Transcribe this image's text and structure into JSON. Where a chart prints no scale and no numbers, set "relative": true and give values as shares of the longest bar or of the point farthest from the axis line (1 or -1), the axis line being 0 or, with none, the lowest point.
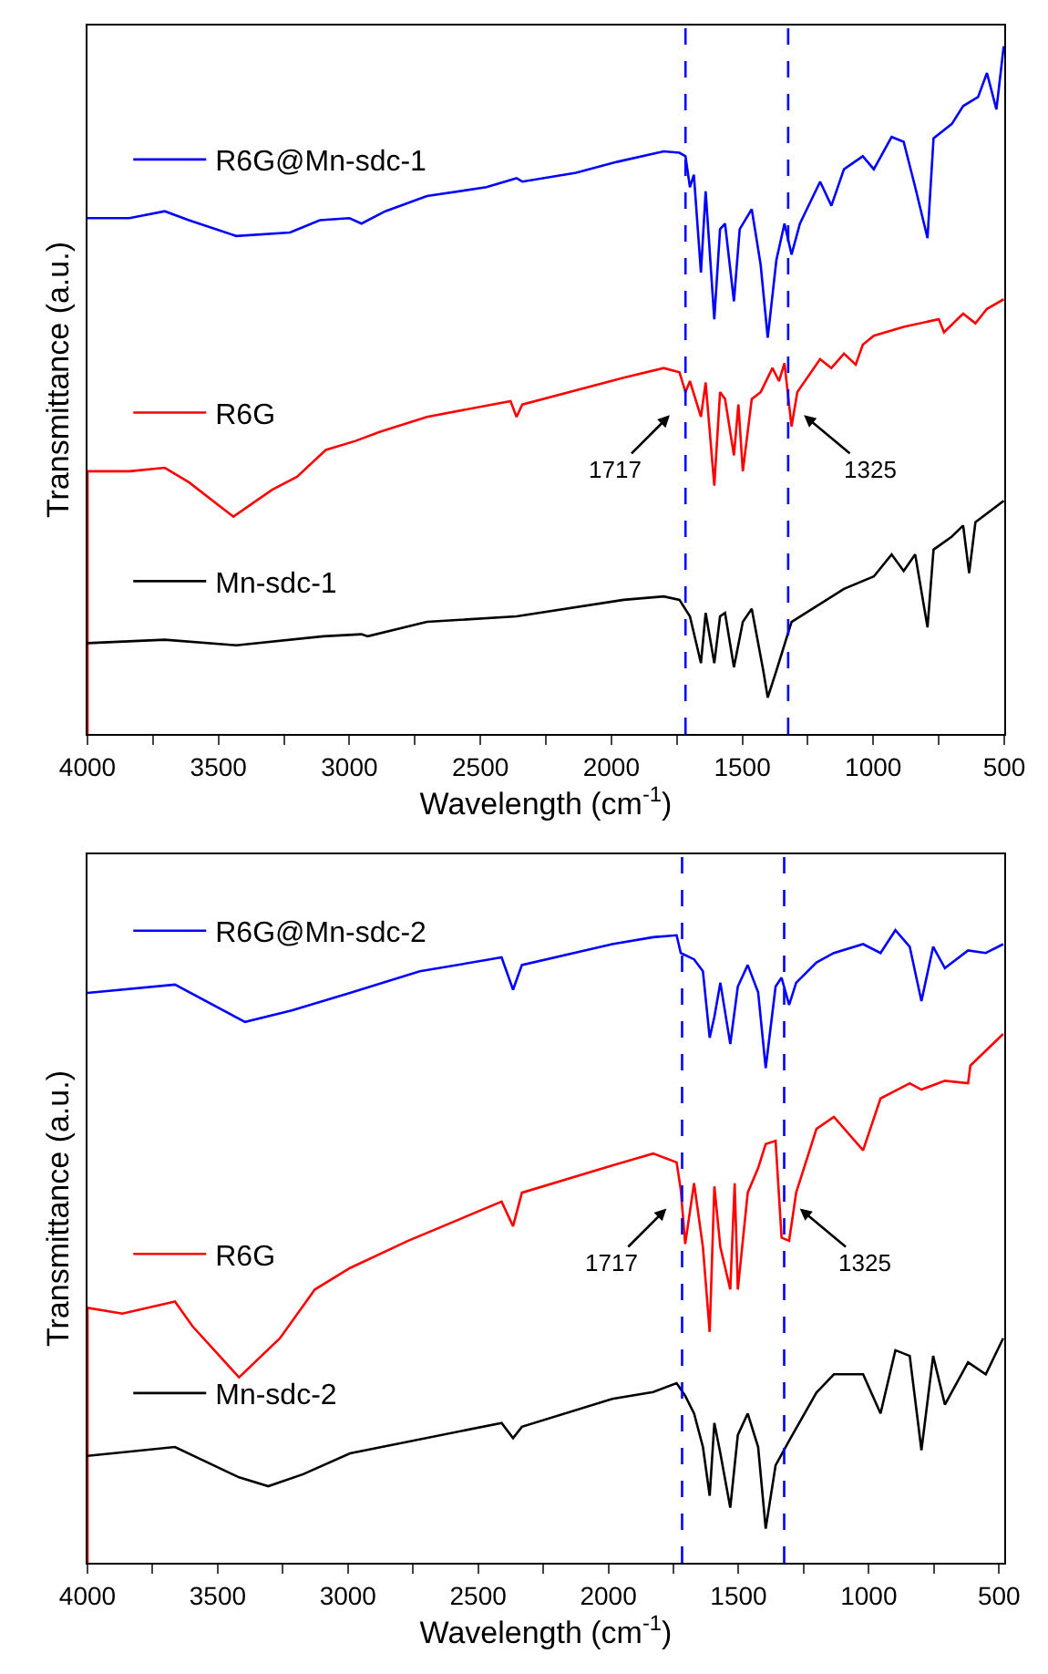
{
  "chart_data": [
    {
      "type": "line",
      "xlabel": "Wavelength (cm$^{-1}$)",
      "ylabel": "Transmittance (a.u.)",
      "relative": true,
      "legend": "left",
      "xlim": [
        4000,
        500
      ],
      "xticks": [
        4000,
        {
          "value": 3750,
          "label": null
        },
        3500,
        {
          "value": 3250,
          "label": null
        },
        3000,
        {
          "value": 2750,
          "label": null
        },
        2500,
        {
          "value": 2250,
          "label": null
        },
        2000,
        {
          "value": 1750,
          "label": null
        },
        1500,
        {
          "value": 1250,
          "label": null
        },
        1000,
        {
          "value": 750,
          "label": null
        },
        500
      ],
      "series": [
        {
          "name": "R6G@Mn-sdc-1",
          "color": "#0000ff",
          "x": [
            4000,
            3840,
            3705,
            3613,
            3432,
            3227,
            3113,
            3000,
            2954,
            2863,
            2704,
            2477,
            2362,
            2340,
            2135,
            1976,
            1800,
            1740,
            1717,
            1700,
            1685,
            1658,
            1640,
            1607,
            1585,
            1566,
            1532,
            1510,
            1464,
            1430,
            1403,
            1370,
            1339,
            1312,
            1280,
            1203,
            1160,
            1112,
            1040,
            998,
            930,
            884,
            840,
            793,
            770,
            700,
            657,
            600,
            566,
            530,
            502
          ],
          "values": [
            0.75,
            0.75,
            0.76,
            0.747,
            0.724,
            0.729,
            0.747,
            0.75,
            0.742,
            0.76,
            0.782,
            0.795,
            0.808,
            0.803,
            0.816,
            0.832,
            0.847,
            0.845,
            0.84,
            0.795,
            0.813,
            0.671,
            0.789,
            0.603,
            0.734,
            0.742,
            0.629,
            0.734,
            0.763,
            0.682,
            0.576,
            0.689,
            0.742,
            0.697,
            0.742,
            0.803,
            0.768,
            0.821,
            0.84,
            0.821,
            0.868,
            0.861,
            0.795,
            0.721,
            0.866,
            0.887,
            0.913,
            0.926,
            0.961,
            0.908,
            1.0
          ]
        },
        {
          "name": "R6G",
          "color": "#ff0000",
          "x": [
            4000,
            4000,
            3840,
            3705,
            3613,
            3443,
            3295,
            3200,
            3090,
            2977,
            2885,
            2704,
            2385,
            2362,
            2340,
            1953,
            1800,
            1740,
            1717,
            1700,
            1658,
            1640,
            1607,
            1585,
            1566,
            1532,
            1515,
            1498,
            1464,
            1430,
            1385,
            1360,
            1339,
            1312,
            1290,
            1203,
            1160,
            1112,
            1067,
            1040,
            998,
            884,
            750,
            730,
            657,
            610,
            566,
            502
          ],
          "values": [
            0.0,
            0.382,
            0.382,
            0.387,
            0.366,
            0.316,
            0.355,
            0.374,
            0.413,
            0.426,
            0.439,
            0.461,
            0.484,
            0.461,
            0.479,
            0.518,
            0.532,
            0.526,
            0.497,
            0.513,
            0.461,
            0.511,
            0.361,
            0.497,
            0.487,
            0.405,
            0.479,
            0.382,
            0.487,
            0.497,
            0.532,
            0.513,
            0.539,
            0.447,
            0.497,
            0.545,
            0.532,
            0.553,
            0.537,
            0.566,
            0.579,
            0.592,
            0.603,
            0.584,
            0.611,
            0.597,
            0.618,
            0.632
          ]
        },
        {
          "name": "Mn-sdc-1",
          "color": "#000000",
          "x": [
            4000,
            3705,
            3432,
            3100,
            2954,
            2930,
            2704,
            2362,
            1953,
            1800,
            1740,
            1700,
            1658,
            1640,
            1607,
            1585,
            1566,
            1532,
            1498,
            1464,
            1420,
            1403,
            1370,
            1312,
            1203,
            1112,
            998,
            930,
            884,
            840,
            793,
            770,
            700,
            657,
            634,
            610,
            502
          ],
          "values": [
            0.132,
            0.137,
            0.129,
            0.142,
            0.145,
            0.142,
            0.163,
            0.171,
            0.195,
            0.2,
            0.195,
            0.171,
            0.103,
            0.176,
            0.103,
            0.171,
            0.176,
            0.097,
            0.163,
            0.182,
            0.092,
            0.053,
            0.092,
            0.163,
            0.189,
            0.211,
            0.229,
            0.261,
            0.237,
            0.261,
            0.155,
            0.268,
            0.287,
            0.303,
            0.234,
            0.308,
            0.339
          ]
        }
      ],
      "ref_lines": [
        {
          "axis": "x",
          "value": 1717,
          "color": "#0000ff",
          "line_style": "dashed"
        },
        {
          "axis": "x",
          "value": 1325,
          "color": "#0000ff",
          "line_style": "dashed"
        }
      ],
      "annotations": [
        "1717",
        "1325"
      ]
    },
    {
      "type": "line",
      "xlabel": "Wavelength (cm$^{-1}$)",
      "ylabel": "Transmittance (a.u.)",
      "relative": true,
      "legend": "left",
      "xlim": [
        4000,
        480
      ],
      "xticks": [
        4000,
        {
          "value": 3750,
          "label": null
        },
        3500,
        {
          "value": 3250,
          "label": null
        },
        3000,
        {
          "value": 2750,
          "label": null
        },
        2500,
        {
          "value": 2250,
          "label": null
        },
        2000,
        {
          "value": 1750,
          "label": null
        },
        1500,
        {
          "value": 1250,
          "label": null
        },
        1000,
        {
          "value": 750,
          "label": null
        },
        500
      ],
      "series": [
        {
          "name": "R6G@Mn-sdc-2",
          "color": "#0000ff",
          "x": [
            4000,
            3664,
            3395,
            3216,
            2992,
            2724,
            2410,
            2366,
            2332,
            1985,
            1828,
            1738,
            1722,
            1671,
            1637,
            1611,
            1593,
            1570,
            1532,
            1503,
            1465,
            1425,
            1396,
            1358,
            1335,
            1306,
            1279,
            1201,
            1134,
            1022,
            955,
            898,
            843,
            798,
            753,
            708,
            619,
            551,
            484
          ],
          "values": [
            0.901,
            0.914,
            0.855,
            0.873,
            0.901,
            0.935,
            0.957,
            0.906,
            0.945,
            0.978,
            0.989,
            0.992,
            0.964,
            0.954,
            0.935,
            0.83,
            0.863,
            0.917,
            0.82,
            0.911,
            0.945,
            0.902,
            0.782,
            0.911,
            0.925,
            0.882,
            0.917,
            0.949,
            0.964,
            0.978,
            0.964,
            1.0,
            0.974,
            0.888,
            0.974,
            0.94,
            0.968,
            0.964,
            0.978
          ]
        },
        {
          "name": "R6G",
          "color": "#ff0000",
          "x": [
            4000,
            4000,
            3866,
            3664,
            3597,
            3418,
            3261,
            3127,
            2992,
            2769,
            2410,
            2366,
            2332,
            1985,
            1828,
            1738,
            1722,
            1705,
            1671,
            1637,
            1611,
            1593,
            1570,
            1532,
            1515,
            1503,
            1465,
            1425,
            1396,
            1358,
            1335,
            1306,
            1279,
            1201,
            1134,
            1022,
            955,
            843,
            798,
            708,
            619,
            610,
            484
          ],
          "values": [
            0.0,
            0.403,
            0.394,
            0.413,
            0.374,
            0.293,
            0.355,
            0.432,
            0.466,
            0.509,
            0.571,
            0.532,
            0.585,
            0.628,
            0.647,
            0.633,
            0.59,
            0.504,
            0.6,
            0.499,
            0.365,
            0.595,
            0.499,
            0.432,
            0.6,
            0.432,
            0.585,
            0.624,
            0.662,
            0.667,
            0.514,
            0.509,
            0.585,
            0.686,
            0.705,
            0.652,
            0.734,
            0.758,
            0.748,
            0.762,
            0.758,
            0.786,
            0.836
          ]
        },
        {
          "name": "Mn-sdc-2",
          "color": "#000000",
          "x": [
            4000,
            3664,
            3418,
            3306,
            3172,
            2992,
            2410,
            2366,
            2332,
            1985,
            1828,
            1738,
            1705,
            1671,
            1637,
            1611,
            1593,
            1570,
            1532,
            1503,
            1465,
            1425,
            1396,
            1358,
            1306,
            1201,
            1134,
            1022,
            955,
            898,
            843,
            798,
            753,
            708,
            619,
            551,
            484
          ],
          "values": [
            0.169,
            0.183,
            0.135,
            0.121,
            0.14,
            0.173,
            0.221,
            0.197,
            0.215,
            0.259,
            0.27,
            0.284,
            0.264,
            0.236,
            0.183,
            0.106,
            0.221,
            0.173,
            0.087,
            0.202,
            0.236,
            0.183,
            0.054,
            0.154,
            0.193,
            0.269,
            0.298,
            0.298,
            0.236,
            0.336,
            0.327,
            0.178,
            0.327,
            0.25,
            0.317,
            0.298,
            0.355
          ]
        }
      ],
      "ref_lines": [
        {
          "axis": "x",
          "value": 1717,
          "color": "#0000ff",
          "line_style": "dashed"
        },
        {
          "axis": "x",
          "value": 1325,
          "color": "#0000ff",
          "line_style": "dashed"
        }
      ],
      "annotations": [
        "1717",
        "1325"
      ]
    }
  ]
}
